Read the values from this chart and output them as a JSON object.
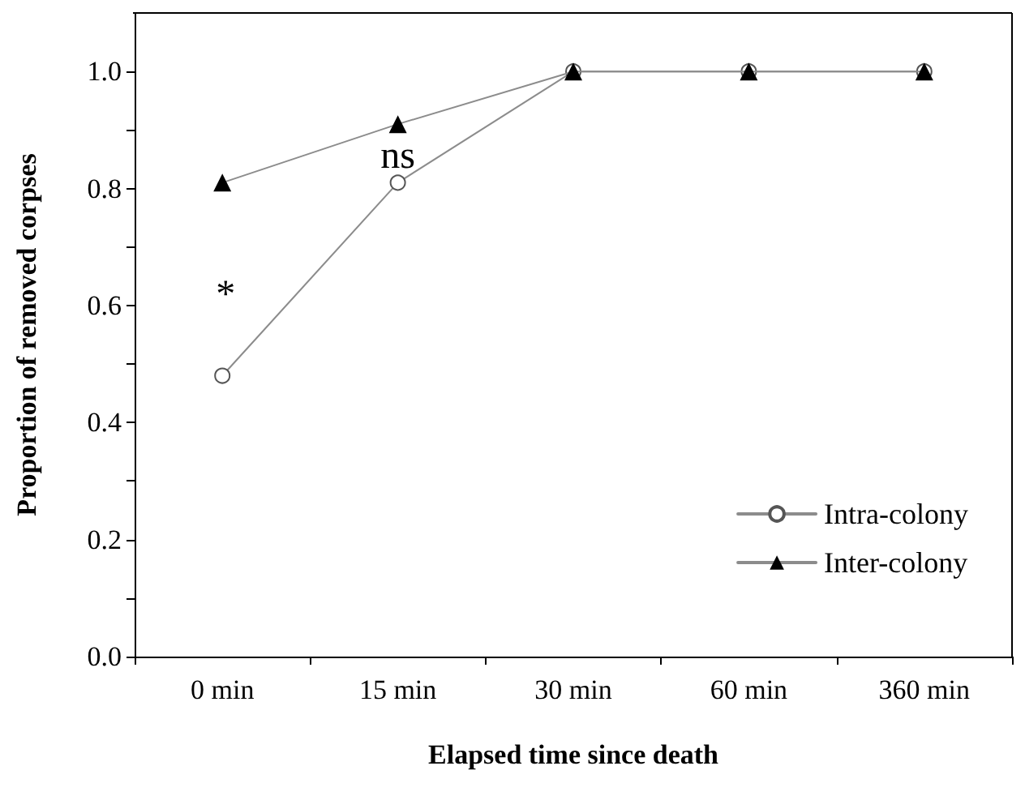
{
  "chart_data": {
    "type": "line",
    "xlabel": "Elapsed time since death",
    "ylabel": "Proportion of removed corpses",
    "categories": [
      "0 min",
      "15 min",
      "30 min",
      "60 min",
      "360 min"
    ],
    "series": [
      {
        "name": "Intra-colony",
        "color": "#8c8c8c",
        "marker": "circle",
        "values": [
          0.48,
          0.81,
          1.0,
          1.0,
          1.0
        ]
      },
      {
        "name": "Inter-colony",
        "color": "#8c8c8c",
        "marker": "triangle",
        "values": [
          0.81,
          0.91,
          1.0,
          1.0,
          1.0
        ]
      }
    ],
    "ylim": [
      0,
      1.1
    ],
    "yticks": [
      {
        "value": 0,
        "label": "0.0"
      },
      {
        "value": 0.1,
        "label": null
      },
      {
        "value": 0.2,
        "label": "0.2"
      },
      {
        "value": 0.3,
        "label": null
      },
      {
        "value": 0.4,
        "label": "0.4"
      },
      {
        "value": 0.5,
        "label": null
      },
      {
        "value": 0.6,
        "label": "0.6"
      },
      {
        "value": 0.7,
        "label": null
      },
      {
        "value": 0.8,
        "label": "0.8"
      },
      {
        "value": 0.9,
        "label": null
      },
      {
        "value": 1.0,
        "label": "1.0"
      }
    ],
    "annotations": [
      "*",
      "ns"
    ],
    "legend": "bottom right",
    "grid": false,
    "line_style": "solid"
  }
}
